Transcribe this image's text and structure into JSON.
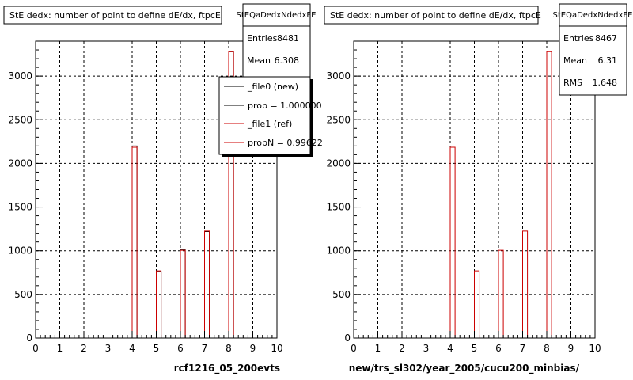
{
  "chart_data": [
    {
      "type": "bar",
      "title": "StE dedx: number of point to define dE/dx, ftpcE",
      "xlabel": "rcf1216_05_200evts",
      "ylabel": "",
      "xlim": [
        0,
        10
      ],
      "ylim": [
        0,
        3400
      ],
      "x_ticks": [
        "0",
        "1",
        "2",
        "3",
        "4",
        "5",
        "6",
        "7",
        "8",
        "9",
        "10"
      ],
      "y_ticks": [
        "0",
        "500",
        "1000",
        "1500",
        "2000",
        "2500",
        "3000"
      ],
      "grid": true,
      "bin_width": 0.2,
      "stats": {
        "name": "StEQaDedxNdedxFE",
        "rows": [
          {
            "label": "Entries",
            "value": "8481"
          },
          {
            "label": "Mean",
            "value": "6.308"
          }
        ]
      },
      "legend": {
        "position": "top-right",
        "entries": [
          {
            "label": "_file0 (new)",
            "color": "#000000"
          },
          {
            "label": "prob = 1.000000",
            "color": "#000000"
          },
          {
            "label": "_file1 (ref)",
            "color": "#cc0000"
          },
          {
            "label": "probN = 0.99622",
            "color": "#cc0000"
          }
        ]
      },
      "series": [
        {
          "name": "_file0 (new)",
          "color": "#000000",
          "x": [
            4.1,
            5.1,
            6.1,
            7.1,
            8.1
          ],
          "values": [
            2200,
            760,
            1010,
            1220,
            3280
          ]
        },
        {
          "name": "_file1 (ref)",
          "color": "#cc0000",
          "x": [
            4.1,
            5.1,
            6.1,
            7.1,
            8.1
          ],
          "values": [
            2185,
            770,
            1005,
            1225,
            3280
          ]
        }
      ]
    },
    {
      "type": "bar",
      "title": "StE dedx: number of point to define dE/dx, ftpcE",
      "xlabel": "new/trs_sl302/year_2005/cucu200_minbias/",
      "ylabel": "",
      "xlim": [
        0,
        10
      ],
      "ylim": [
        0,
        3400
      ],
      "x_ticks": [
        "0",
        "1",
        "2",
        "3",
        "4",
        "5",
        "6",
        "7",
        "8",
        "9",
        "10"
      ],
      "y_ticks": [
        "0",
        "500",
        "1000",
        "1500",
        "2000",
        "2500",
        "3000"
      ],
      "grid": true,
      "bin_width": 0.2,
      "stats": {
        "name": "StEQaDedxNdedxFE",
        "rows": [
          {
            "label": "Entries",
            "value": "8467"
          },
          {
            "label": "Mean",
            "value": "6.31"
          },
          {
            "label": "RMS",
            "value": "1.648"
          }
        ]
      },
      "series": [
        {
          "name": "ref",
          "color": "#cc0000",
          "x": [
            4.1,
            5.1,
            6.1,
            7.1,
            8.1
          ],
          "values": [
            2185,
            770,
            1005,
            1225,
            3280
          ]
        }
      ]
    }
  ]
}
